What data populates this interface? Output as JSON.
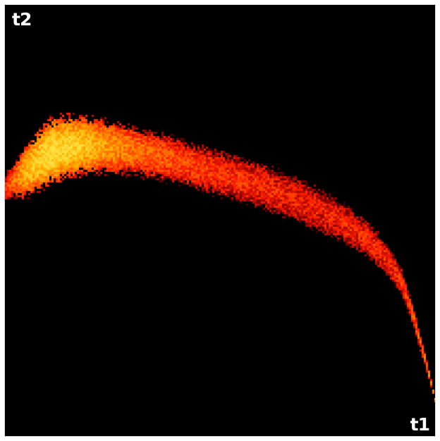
{
  "chart_data": {
    "type": "heatmap",
    "title": "",
    "xlabel": "t1",
    "ylabel": "t2",
    "xlim": [
      0,
      1
    ],
    "ylim": [
      0,
      1
    ],
    "grid": false,
    "colormap": [
      "#000000",
      "#7a0000",
      "#ff1a00",
      "#ff6a00",
      "#ffb000",
      "#ffe040"
    ],
    "background": "#000000",
    "ridge": {
      "x": [
        0.0,
        0.05,
        0.1,
        0.15,
        0.22,
        0.3,
        0.4,
        0.5,
        0.6,
        0.7,
        0.78,
        0.84,
        0.88,
        0.92,
        0.95,
        0.98,
        1.0
      ],
      "y": [
        0.58,
        0.62,
        0.66,
        0.675,
        0.675,
        0.665,
        0.64,
        0.61,
        0.58,
        0.54,
        0.5,
        0.46,
        0.42,
        0.36,
        0.27,
        0.16,
        0.08
      ],
      "halfwidth": [
        0.03,
        0.06,
        0.075,
        0.07,
        0.06,
        0.055,
        0.05,
        0.05,
        0.05,
        0.048,
        0.045,
        0.04,
        0.035,
        0.03,
        0.022,
        0.012,
        0.004
      ],
      "density": [
        0.45,
        0.85,
        1.0,
        0.95,
        0.78,
        0.62,
        0.52,
        0.46,
        0.42,
        0.4,
        0.4,
        0.42,
        0.42,
        0.45,
        0.5,
        0.62,
        0.9
      ]
    }
  }
}
